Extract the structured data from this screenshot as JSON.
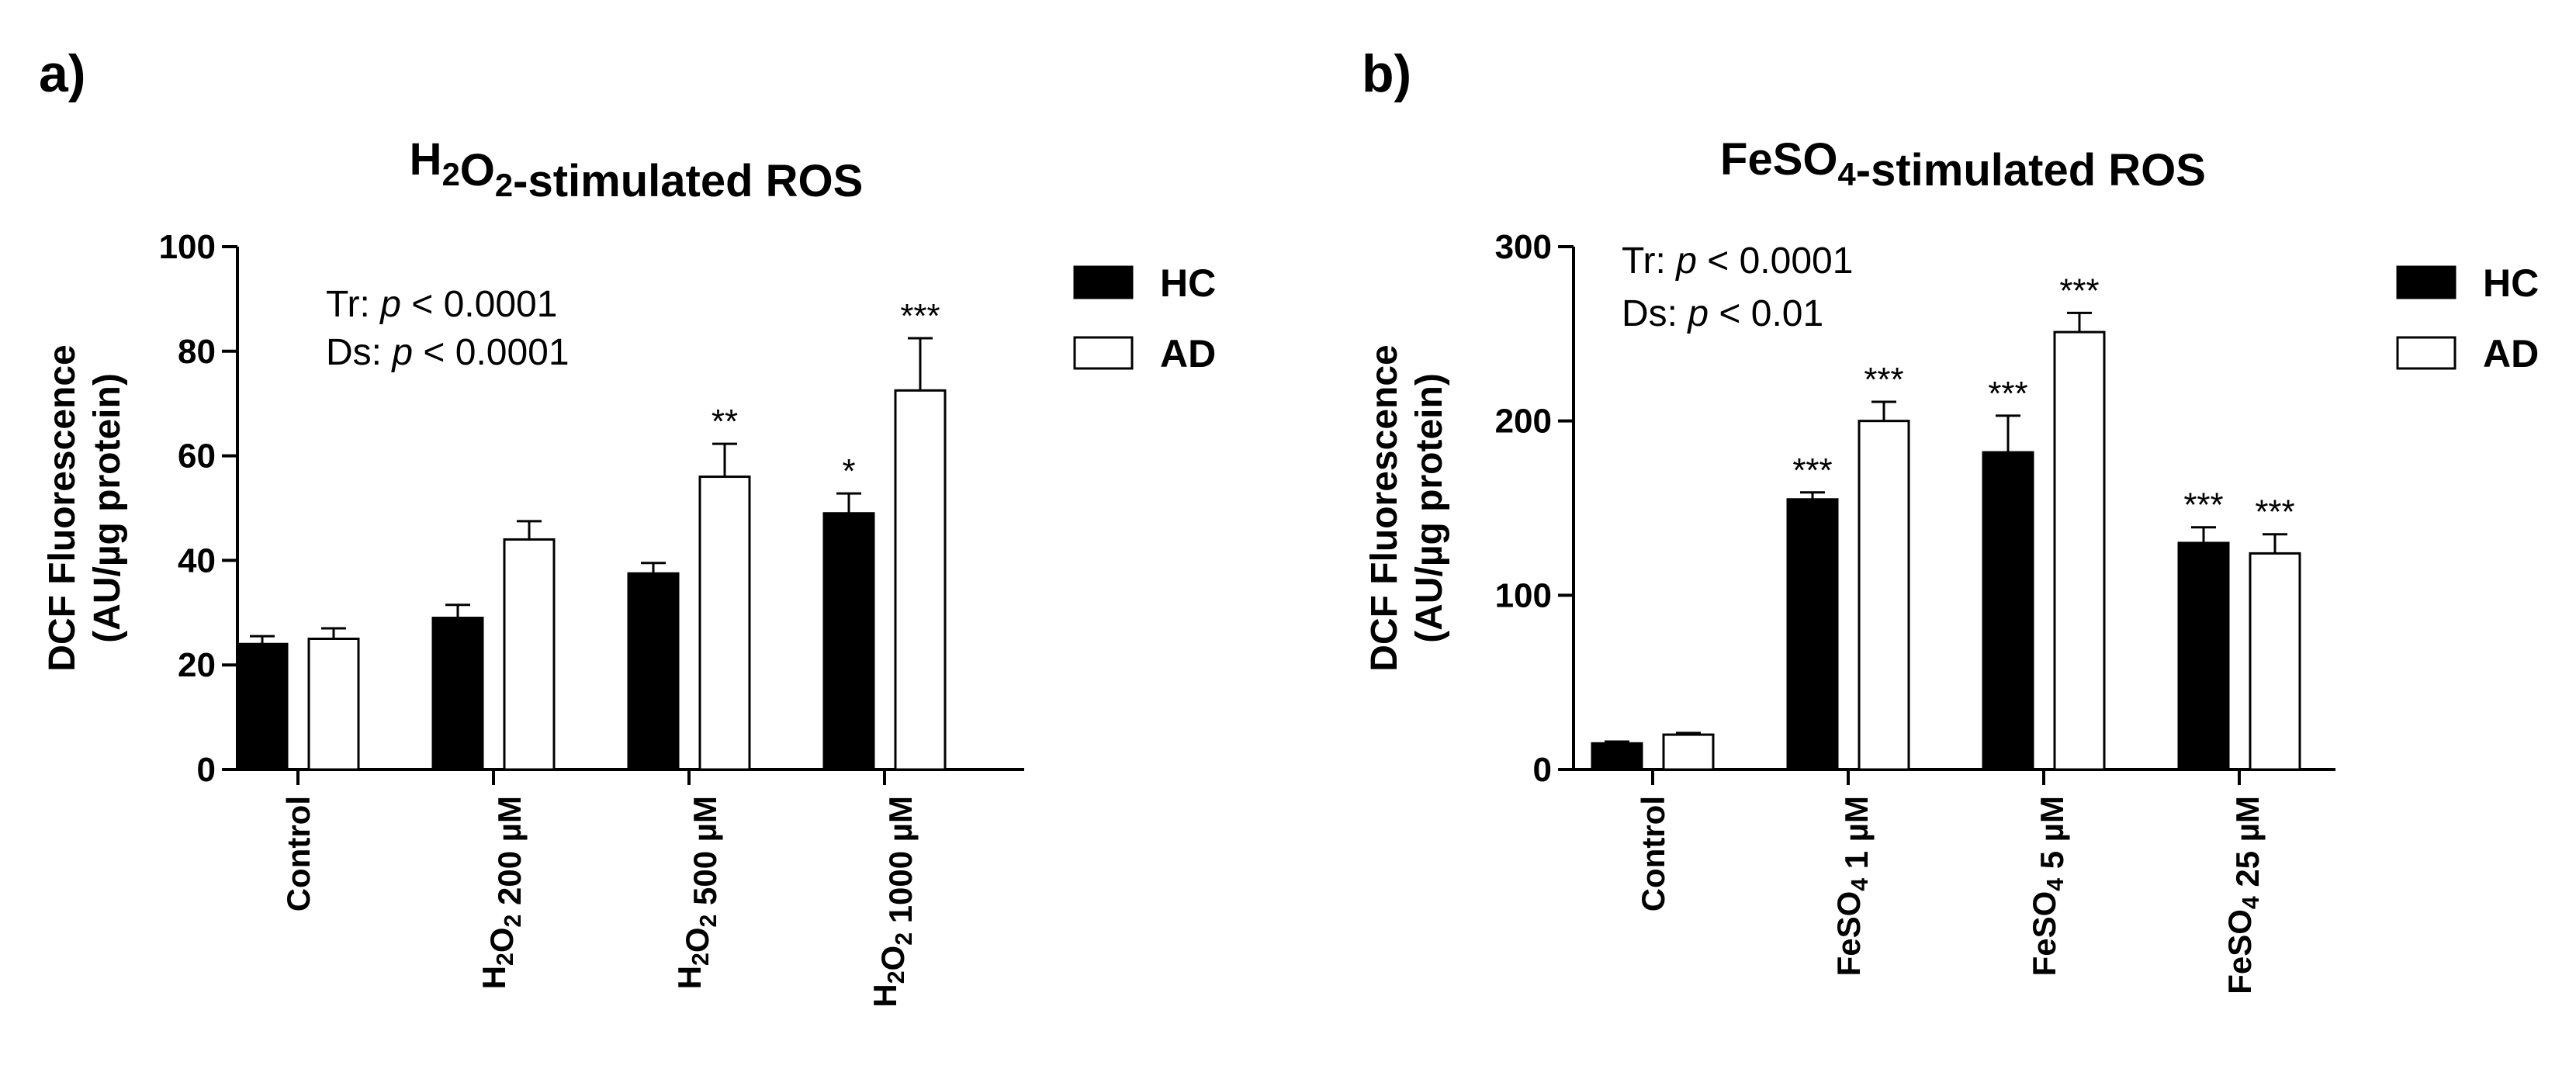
{
  "colors": {
    "hc": "#000000",
    "ad": "#ffffff",
    "axis": "#000000"
  },
  "chart_data": [
    {
      "type": "bar",
      "panel": "a)",
      "title_parts": [
        {
          "t": "H",
          "sub": false
        },
        {
          "t": "2",
          "sub": true
        },
        {
          "t": "O",
          "sub": false
        },
        {
          "t": "2",
          "sub": true
        },
        {
          "t": "-stimulated ROS",
          "sub": false
        }
      ],
      "ylabel": [
        "DCF Fluorescence",
        "(AU/µg protein)"
      ],
      "ylim": [
        0,
        100
      ],
      "yticks": [
        0,
        20,
        40,
        60,
        80,
        100
      ],
      "categories": [
        [
          {
            "t": "Control",
            "sub": false
          }
        ],
        [
          {
            "t": "H",
            "sub": false
          },
          {
            "t": "2",
            "sub": true
          },
          {
            "t": "O",
            "sub": false
          },
          {
            "t": "2",
            "sub": true
          },
          {
            "t": " 200 µM",
            "sub": false
          }
        ],
        [
          {
            "t": "H",
            "sub": false
          },
          {
            "t": "2",
            "sub": true
          },
          {
            "t": "O",
            "sub": false
          },
          {
            "t": "2",
            "sub": true
          },
          {
            "t": " 500 µM",
            "sub": false
          }
        ],
        [
          {
            "t": "H",
            "sub": false
          },
          {
            "t": "2",
            "sub": true
          },
          {
            "t": "O",
            "sub": false
          },
          {
            "t": "2",
            "sub": true
          },
          {
            "t": " 1000 µM",
            "sub": false
          }
        ]
      ],
      "series": [
        {
          "name": "HC",
          "values": [
            24,
            29,
            37.5,
            49
          ],
          "errors": [
            1.5,
            2.5,
            2,
            3.8
          ],
          "stars": [
            "",
            "",
            "",
            "*"
          ]
        },
        {
          "name": "AD",
          "values": [
            25,
            44,
            56,
            72.5
          ],
          "errors": [
            2,
            3.5,
            6.3,
            10
          ],
          "stars": [
            "",
            "",
            "**",
            "***"
          ]
        }
      ],
      "stats": [
        {
          "prefix": "Tr: ",
          "p": "p",
          "suffix": " < 0.0001"
        },
        {
          "prefix": "Ds: ",
          "p": "p",
          "suffix": " < 0.0001"
        }
      ]
    },
    {
      "type": "bar",
      "panel": "b)",
      "title_parts": [
        {
          "t": "FeSO",
          "sub": false
        },
        {
          "t": "4",
          "sub": true
        },
        {
          "t": "-stimulated ROS",
          "sub": false
        }
      ],
      "ylabel": [
        "DCF Fluorescence",
        "(AU/µg protein)"
      ],
      "ylim": [
        0,
        300
      ],
      "yticks": [
        0,
        100,
        200,
        300
      ],
      "categories": [
        [
          {
            "t": "Control",
            "sub": false
          }
        ],
        [
          {
            "t": "FeSO",
            "sub": false
          },
          {
            "t": "4",
            "sub": true
          },
          {
            "t": " 1 µM",
            "sub": false
          }
        ],
        [
          {
            "t": "FeSO",
            "sub": false
          },
          {
            "t": "4",
            "sub": true
          },
          {
            "t": " 5 µM",
            "sub": false
          }
        ],
        [
          {
            "t": "FeSO",
            "sub": false
          },
          {
            "t": "4",
            "sub": true
          },
          {
            "t": " 25 µM",
            "sub": false
          }
        ]
      ],
      "series": [
        {
          "name": "HC",
          "values": [
            15,
            155,
            182,
            130
          ],
          "errors": [
            1,
            4,
            21,
            9
          ],
          "stars": [
            "",
            "***",
            "***",
            "***"
          ]
        },
        {
          "name": "AD",
          "values": [
            20,
            200,
            251,
            124
          ],
          "errors": [
            1,
            11,
            11,
            11
          ],
          "stars": [
            "",
            "***",
            "***",
            "***"
          ]
        }
      ],
      "stats": [
        {
          "prefix": "Tr: ",
          "p": "p",
          "suffix": " < 0.0001"
        },
        {
          "prefix": "Ds: ",
          "p": "p",
          "suffix": " < 0.01"
        }
      ]
    }
  ]
}
